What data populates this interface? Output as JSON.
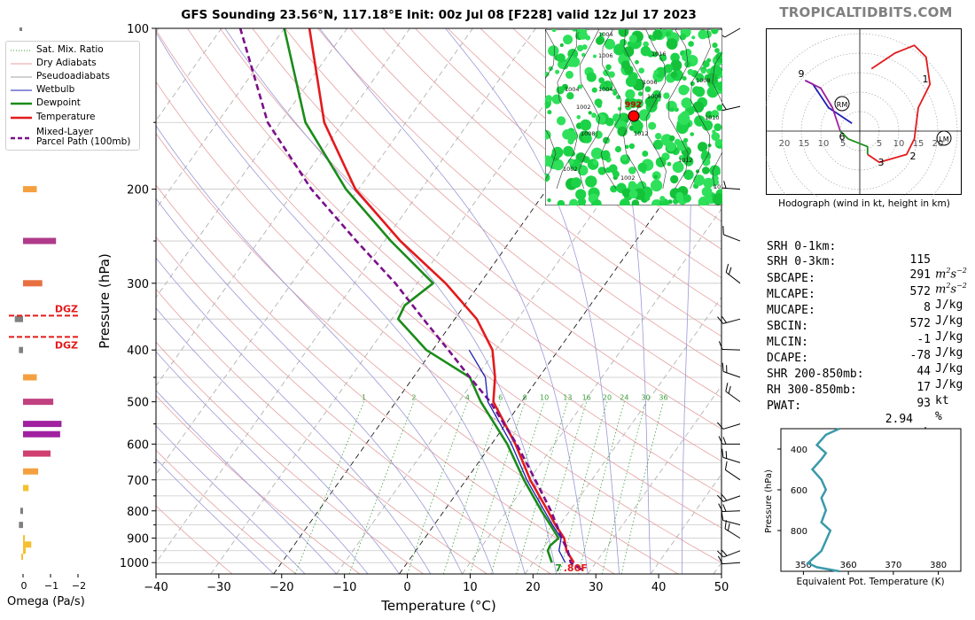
{
  "title": "GFS Sounding 23.56°N, 117.18°E Init: 00z Jul 08 [F228] valid 12z Jul 17 2023",
  "brand": "TROPICALTIDBITS.COM",
  "colors": {
    "temperature": "#e31a1c",
    "dewpoint": "#1a8c1a",
    "parcel": "#7b0f8a",
    "wetbulb": "#1f1fb4",
    "dry_adiabat": "#e6a0a0",
    "pseudo_adiabat": "#9a9ad8",
    "mixing_ratio": "#3aa03a",
    "isobar": "#c8c8c8",
    "isotherm": "#b4b4b4"
  },
  "legend": [
    {
      "label": "Sat. Mix. Ratio",
      "style": "dotted-green"
    },
    {
      "label": "Dry Adiabats",
      "style": "thin-red"
    },
    {
      "label": "Pseudoadiabats",
      "style": "thin-gray"
    },
    {
      "label": "Wetbulb",
      "style": "thin-blue"
    },
    {
      "label": "Dewpoint",
      "style": "thick-green"
    },
    {
      "label": "Temperature",
      "style": "thick-red"
    },
    {
      "label": "Mixed-Layer",
      "style": "dashed-purple"
    },
    {
      "label": "Parcel Path (100mb)",
      "style": "none"
    }
  ],
  "chart_data": [
    {
      "type": "line",
      "name": "skew-t",
      "xlabel": "Temperature (°C)",
      "ylabel": "Pressure (hPa)",
      "xlim": [
        -40,
        50
      ],
      "ylim": [
        1050,
        100
      ],
      "skew": 35,
      "x_ticks": [
        -40,
        -30,
        -20,
        -10,
        0,
        10,
        20,
        30,
        40,
        50
      ],
      "y_ticks": [
        100,
        200,
        300,
        400,
        500,
        600,
        700,
        800,
        900,
        1000
      ],
      "mixing_ratio_labels": [
        "1",
        "2",
        "4",
        "6",
        "8",
        "10",
        "13",
        "16",
        "20",
        "24",
        "30",
        "36"
      ],
      "surface_label": "7.80F",
      "series": [
        {
          "name": "Temperature",
          "points": [
            [
              1000,
              26.5
            ],
            [
              950,
              24.0
            ],
            [
              900,
              22.2
            ],
            [
              850,
              19.3
            ],
            [
              800,
              16.5
            ],
            [
              700,
              10.2
            ],
            [
              600,
              3.8
            ],
            [
              500,
              -4.5
            ],
            [
              450,
              -7.0
            ],
            [
              400,
              -10.5
            ],
            [
              350,
              -16.5
            ],
            [
              300,
              -25.5
            ],
            [
              250,
              -37.5
            ],
            [
              200,
              -50.5
            ],
            [
              150,
              -63.0
            ],
            [
              100,
              -76.0
            ]
          ]
        },
        {
          "name": "Dewpoint",
          "points": [
            [
              1000,
              23.0
            ],
            [
              950,
              21.0
            ],
            [
              930,
              20.8
            ],
            [
              900,
              21.3
            ],
            [
              850,
              18.5
            ],
            [
              800,
              15.5
            ],
            [
              700,
              9.2
            ],
            [
              600,
              2.5
            ],
            [
              500,
              -6.5
            ],
            [
              450,
              -11.0
            ],
            [
              400,
              -21.0
            ],
            [
              350,
              -29.0
            ],
            [
              330,
              -29.5
            ],
            [
              300,
              -27.5
            ],
            [
              250,
              -39.0
            ],
            [
              200,
              -52.0
            ],
            [
              150,
              -66.0
            ],
            [
              100,
              -80.0
            ]
          ]
        },
        {
          "name": "Mixed-Layer Parcel Path (100mb)",
          "points": [
            [
              1030,
              28.5
            ],
            [
              1000,
              26.0
            ],
            [
              950,
              24.2
            ],
            [
              900,
              21.8
            ],
            [
              850,
              19.5
            ],
            [
              800,
              17.0
            ],
            [
              700,
              11.0
            ],
            [
              600,
              4.0
            ],
            [
              500,
              -5.0
            ],
            [
              450,
              -11.0
            ],
            [
              400,
              -17.5
            ],
            [
              350,
              -25.0
            ],
            [
              300,
              -33.5
            ],
            [
              250,
              -44.5
            ],
            [
              200,
              -57.5
            ],
            [
              150,
              -72.0
            ],
            [
              100,
              -87.0
            ]
          ]
        }
      ]
    },
    {
      "type": "bar",
      "name": "omega",
      "xlabel": "Omega (Pa/s)",
      "x_ticks": [
        "0",
        "−1",
        "−2"
      ],
      "dgz_labels": [
        "DGZ",
        "DGZ"
      ],
      "dgz_pressures": [
        345,
        378
      ],
      "bars": [
        {
          "p": 200,
          "value": -0.5,
          "color": "#f5a040"
        },
        {
          "p": 250,
          "value": -1.2,
          "color": "#b03a8a"
        },
        {
          "p": 300,
          "value": -0.7,
          "color": "#e87040"
        },
        {
          "p": 350,
          "value": 0.3,
          "color": "#808080"
        },
        {
          "p": 400,
          "value": 0.15,
          "color": "#808080"
        },
        {
          "p": 450,
          "value": -0.5,
          "color": "#f5a040"
        },
        {
          "p": 500,
          "value": -1.1,
          "color": "#c04080"
        },
        {
          "p": 550,
          "value": -1.4,
          "color": "#a020a0"
        },
        {
          "p": 575,
          "value": -1.35,
          "color": "#a020a0"
        },
        {
          "p": 625,
          "value": -1.0,
          "color": "#d04070"
        },
        {
          "p": 675,
          "value": -0.55,
          "color": "#f5a040"
        },
        {
          "p": 725,
          "value": -0.2,
          "color": "#f5c030"
        },
        {
          "p": 800,
          "value": 0.1,
          "color": "#808080"
        },
        {
          "p": 850,
          "value": 0.15,
          "color": "#808080"
        },
        {
          "p": 900,
          "value": -0.05,
          "color": "#f5c030"
        },
        {
          "p": 925,
          "value": -0.3,
          "color": "#f5c030"
        },
        {
          "p": 950,
          "value": -0.1,
          "color": "#f5c030"
        },
        {
          "p": 975,
          "value": 0.05,
          "color": "#f5c030"
        }
      ]
    },
    {
      "type": "line",
      "name": "hodograph",
      "caption": "Hodograph (wind in kt, height in km)",
      "ring_labels": [
        "20",
        "15",
        "10",
        "5",
        "5",
        "10",
        "15",
        "20"
      ],
      "markers": [
        "RM",
        "LM"
      ],
      "height_labels": [
        "9",
        "1",
        "6",
        "3",
        "2"
      ],
      "segments": [
        {
          "color": "#1f1fb4",
          "points": [
            [
              -2,
              2
            ],
            [
              -8,
              6
            ],
            [
              -12,
              12
            ],
            [
              -14,
              13
            ]
          ]
        },
        {
          "color": "#a020a0",
          "points": [
            [
              -14,
              13
            ],
            [
              -10,
              11
            ],
            [
              -7,
              6
            ],
            [
              -6,
              3
            ],
            [
              -5,
              0
            ]
          ]
        },
        {
          "color": "#1a8c1a",
          "points": [
            [
              -5,
              0
            ],
            [
              -3,
              -2
            ],
            [
              2,
              -4
            ],
            [
              2,
              -6
            ]
          ]
        },
        {
          "color": "#e31a1c",
          "points": [
            [
              2,
              -6
            ],
            [
              5,
              -8
            ],
            [
              12,
              -6
            ],
            [
              14,
              -2
            ],
            [
              15,
              6
            ],
            [
              18,
              12
            ],
            [
              17,
              19
            ],
            [
              14,
              22
            ],
            [
              9,
              20
            ],
            [
              3,
              16
            ]
          ]
        }
      ]
    },
    {
      "type": "line",
      "name": "equivalent-potential-temperature",
      "xlabel": "Equivalent Pot. Temperature (K)",
      "ylabel": "Pressure (hPa)",
      "xlim": [
        345,
        385
      ],
      "ylim": [
        1000,
        300
      ],
      "x_ticks": [
        "350",
        "360",
        "370",
        "380"
      ],
      "y_ticks": [
        "400",
        "600",
        "800"
      ],
      "series": [
        {
          "name": "theta-e",
          "points": [
            [
              1000,
              358
            ],
            [
              980,
              353
            ],
            [
              960,
              351
            ],
            [
              940,
              352
            ],
            [
              900,
              354
            ],
            [
              850,
              355
            ],
            [
              800,
              356
            ],
            [
              760,
              354
            ],
            [
              700,
              355
            ],
            [
              640,
              354
            ],
            [
              600,
              355
            ],
            [
              550,
              354
            ],
            [
              500,
              352
            ],
            [
              450,
              354
            ],
            [
              420,
              355
            ],
            [
              380,
              353
            ],
            [
              330,
              355
            ],
            [
              300,
              358
            ]
          ]
        }
      ]
    }
  ],
  "stats": [
    {
      "label": "SRH 0-1km:",
      "value": "115",
      "unit": "m2s-2",
      "color": "#9b2d9b"
    },
    {
      "label": "SRH 0-3km:",
      "value": "291",
      "unit": "m2s-2",
      "color": "#9b2d9b"
    },
    {
      "label": "SBCAPE:",
      "value": "572",
      "unit": "J/kg",
      "color": "#c0392b"
    },
    {
      "label": "MLCAPE:",
      "value": "8",
      "unit": "J/kg",
      "color": "#c0392b"
    },
    {
      "label": "MUCAPE:",
      "value": "572",
      "unit": "J/kg",
      "color": "#c0392b"
    },
    {
      "label": "SBCIN:",
      "value": "-1",
      "unit": "J/kg",
      "color": "#2c2cb8"
    },
    {
      "label": "MLCIN:",
      "value": "-78",
      "unit": "J/kg",
      "color": "#2c2cb8"
    },
    {
      "label": "DCAPE:",
      "value": "44",
      "unit": "J/kg",
      "color": "#2c2cb8"
    },
    {
      "label": "SHR 200-850mb:",
      "value": "17",
      "unit": "kt",
      "color": "#c8602a"
    },
    {
      "label": "RH 300-850mb:",
      "value": "93",
      "unit": "%",
      "color": "#1a7a4a"
    },
    {
      "label": "PWAT:",
      "value": "2.94",
      "unit": "in",
      "color": "#000000"
    }
  ],
  "map_inset": {
    "contour_labels": [
      "1004",
      "1006",
      "1004",
      "1002",
      "1004",
      "1006",
      "1006",
      "1010",
      "1008",
      "1002",
      "1002",
      "1010",
      "1012",
      "1016",
      "1008",
      "1012"
    ],
    "point_label": "992"
  }
}
